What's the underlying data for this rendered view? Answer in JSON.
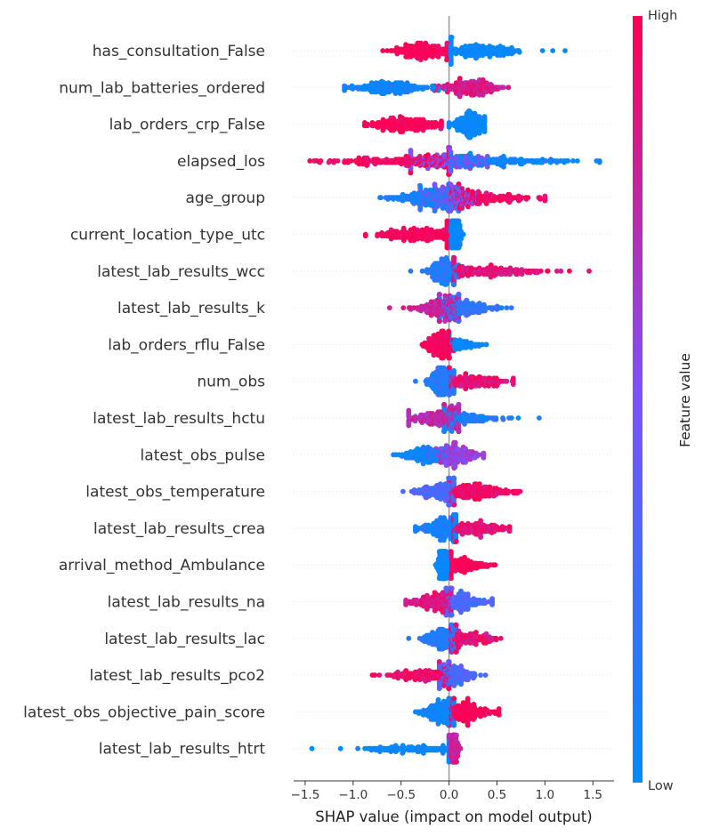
{
  "chart_data": {
    "type": "scatter",
    "subtype": "shap-beeswarm",
    "xlabel": "SHAP value (impact on model output)",
    "xlim": [
      -1.62,
      1.72
    ],
    "xticks": [
      -1.5,
      -1.0,
      -0.5,
      0.0,
      0.5,
      1.0,
      1.5
    ],
    "xtick_labels": [
      "−1.5",
      "−1.0",
      "−0.5",
      "0.0",
      "0.5",
      "1.0",
      "1.5"
    ],
    "colorbar": {
      "title": "Feature value",
      "high_label": "High",
      "low_label": "Low",
      "low_color": "#008bfb",
      "mid_color": "#7c52ff",
      "high_color": "#ff0052"
    },
    "features": [
      {
        "name": "has_consultation_False",
        "clusters": [
          {
            "center": -0.28,
            "spread": 0.15,
            "min": -0.69,
            "max": -0.02,
            "color": 1.0,
            "weight": 1.0
          },
          {
            "center": 0.32,
            "spread": 0.2,
            "min": 0.02,
            "max": 1.21,
            "color": 0.0,
            "weight": 1.0
          }
        ]
      },
      {
        "name": "num_lab_batteries_ordered",
        "clusters": [
          {
            "center": -0.65,
            "spread": 0.2,
            "min": -1.09,
            "max": -0.05,
            "color": 0.05,
            "weight": 1.0
          },
          {
            "center": 0.22,
            "spread": 0.17,
            "min": -0.15,
            "max": 0.62,
            "color": 0.85,
            "weight": 1.0
          }
        ]
      },
      {
        "name": "lab_orders_crp_False",
        "clusters": [
          {
            "center": -0.45,
            "spread": 0.18,
            "min": -0.88,
            "max": -0.08,
            "color": 1.0,
            "weight": 1.0
          },
          {
            "center": 0.22,
            "spread": 0.08,
            "min": 0.0,
            "max": 0.37,
            "color": 0.0,
            "weight": 1.0
          }
        ]
      },
      {
        "name": "elapsed_los",
        "clusters": [
          {
            "center": -0.3,
            "spread": 0.42,
            "min": -1.45,
            "max": 0.0,
            "color": 0.95,
            "weight": 1.0
          },
          {
            "center": 0.0,
            "spread": 0.2,
            "min": -0.4,
            "max": 0.4,
            "color": 0.5,
            "weight": 0.8
          },
          {
            "center": 0.3,
            "spread": 0.45,
            "min": 0.0,
            "max": 1.57,
            "color": 0.05,
            "weight": 1.0
          }
        ]
      },
      {
        "name": "age_group",
        "clusters": [
          {
            "center": -0.2,
            "spread": 0.2,
            "min": -0.72,
            "max": 0.1,
            "color": 0.1,
            "weight": 1.0
          },
          {
            "center": 0.0,
            "spread": 0.15,
            "min": -0.3,
            "max": 0.3,
            "color": 0.5,
            "weight": 0.8
          },
          {
            "center": 0.25,
            "spread": 0.28,
            "min": 0.0,
            "max": 1.0,
            "color": 0.95,
            "weight": 1.0
          }
        ]
      },
      {
        "name": "current_location_type_utc",
        "clusters": [
          {
            "center": -0.3,
            "spread": 0.2,
            "min": -0.87,
            "max": -0.02,
            "color": 1.0,
            "weight": 1.0
          },
          {
            "center": 0.06,
            "spread": 0.03,
            "min": 0.0,
            "max": 0.15,
            "color": 0.0,
            "weight": 1.0
          }
        ]
      },
      {
        "name": "latest_lab_results_wcc",
        "clusters": [
          {
            "center": -0.05,
            "spread": 0.08,
            "min": -0.4,
            "max": 0.1,
            "color": 0.15,
            "weight": 1.0
          },
          {
            "center": 0.35,
            "spread": 0.3,
            "min": 0.05,
            "max": 1.46,
            "color": 0.9,
            "weight": 1.0
          }
        ]
      },
      {
        "name": "latest_lab_results_k",
        "clusters": [
          {
            "center": -0.05,
            "spread": 0.15,
            "min": -0.62,
            "max": 0.1,
            "color": 0.8,
            "weight": 1.0
          },
          {
            "center": 0.1,
            "spread": 0.18,
            "min": -0.1,
            "max": 0.65,
            "color": 0.2,
            "weight": 1.0
          }
        ]
      },
      {
        "name": "lab_orders_rflu_False",
        "clusters": [
          {
            "center": -0.1,
            "spread": 0.07,
            "min": -0.28,
            "max": 0.05,
            "color": 1.0,
            "weight": 1.0
          },
          {
            "center": 0.12,
            "spread": 0.1,
            "min": 0.0,
            "max": 0.39,
            "color": 0.0,
            "weight": 0.35
          }
        ]
      },
      {
        "name": "num_obs",
        "clusters": [
          {
            "center": -0.08,
            "spread": 0.07,
            "min": -0.35,
            "max": 0.05,
            "color": 0.15,
            "weight": 1.0
          },
          {
            "center": 0.2,
            "spread": 0.2,
            "min": 0.0,
            "max": 0.67,
            "color": 0.9,
            "weight": 1.0
          }
        ]
      },
      {
        "name": "latest_lab_results_hctu",
        "clusters": [
          {
            "center": -0.1,
            "spread": 0.17,
            "min": -0.42,
            "max": 0.1,
            "color": 0.75,
            "weight": 1.0
          },
          {
            "center": 0.1,
            "spread": 0.22,
            "min": -0.05,
            "max": 0.94,
            "color": 0.1,
            "weight": 0.8
          }
        ]
      },
      {
        "name": "latest_obs_pulse",
        "clusters": [
          {
            "center": -0.25,
            "spread": 0.13,
            "min": -0.58,
            "max": 0.0,
            "color": 0.05,
            "weight": 0.7
          },
          {
            "center": 0.05,
            "spread": 0.12,
            "min": -0.25,
            "max": 0.36,
            "color": 0.6,
            "weight": 1.0
          }
        ]
      },
      {
        "name": "latest_obs_temperature",
        "clusters": [
          {
            "center": -0.1,
            "spread": 0.12,
            "min": -0.48,
            "max": 0.05,
            "color": 0.3,
            "weight": 0.8
          },
          {
            "center": 0.25,
            "spread": 0.2,
            "min": 0.0,
            "max": 0.74,
            "color": 0.95,
            "weight": 1.0
          }
        ]
      },
      {
        "name": "latest_lab_results_crea",
        "clusters": [
          {
            "center": -0.05,
            "spread": 0.12,
            "min": -0.35,
            "max": 0.07,
            "color": 0.1,
            "weight": 1.0
          },
          {
            "center": 0.25,
            "spread": 0.18,
            "min": 0.05,
            "max": 0.63,
            "color": 0.9,
            "weight": 0.9
          }
        ]
      },
      {
        "name": "arrival_method_Ambulance",
        "clusters": [
          {
            "center": -0.06,
            "spread": 0.03,
            "min": -0.14,
            "max": 0.0,
            "color": 0.0,
            "weight": 1.0
          },
          {
            "center": 0.15,
            "spread": 0.12,
            "min": 0.02,
            "max": 0.48,
            "color": 1.0,
            "weight": 0.6
          }
        ]
      },
      {
        "name": "latest_lab_results_na",
        "clusters": [
          {
            "center": -0.12,
            "spread": 0.13,
            "min": -0.45,
            "max": 0.02,
            "color": 0.85,
            "weight": 0.9
          },
          {
            "center": 0.1,
            "spread": 0.14,
            "min": -0.03,
            "max": 0.45,
            "color": 0.3,
            "weight": 0.9
          }
        ]
      },
      {
        "name": "latest_lab_results_lac",
        "clusters": [
          {
            "center": -0.05,
            "spread": 0.1,
            "min": -0.42,
            "max": 0.07,
            "color": 0.15,
            "weight": 1.0
          },
          {
            "center": 0.2,
            "spread": 0.13,
            "min": 0.02,
            "max": 0.54,
            "color": 0.9,
            "weight": 0.7
          }
        ]
      },
      {
        "name": "latest_lab_results_pco2",
        "clusters": [
          {
            "center": -0.25,
            "spread": 0.18,
            "min": -0.8,
            "max": 0.0,
            "color": 0.95,
            "weight": 0.8
          },
          {
            "center": 0.05,
            "spread": 0.1,
            "min": -0.1,
            "max": 0.38,
            "color": 0.3,
            "weight": 0.8
          }
        ]
      },
      {
        "name": "latest_obs_objective_pain_score",
        "clusters": [
          {
            "center": -0.07,
            "spread": 0.1,
            "min": -0.35,
            "max": 0.05,
            "color": 0.05,
            "weight": 1.0
          },
          {
            "center": 0.17,
            "spread": 0.14,
            "min": 0.0,
            "max": 0.52,
            "color": 1.0,
            "weight": 1.0
          }
        ]
      },
      {
        "name": "latest_lab_results_htrt",
        "clusters": [
          {
            "center": -0.35,
            "spread": 0.28,
            "min": -1.43,
            "max": 0.0,
            "color": 0.0,
            "weight": 0.55
          },
          {
            "center": 0.05,
            "spread": 0.02,
            "min": 0.0,
            "max": 0.12,
            "color": 0.8,
            "weight": 0.6
          }
        ]
      }
    ]
  }
}
